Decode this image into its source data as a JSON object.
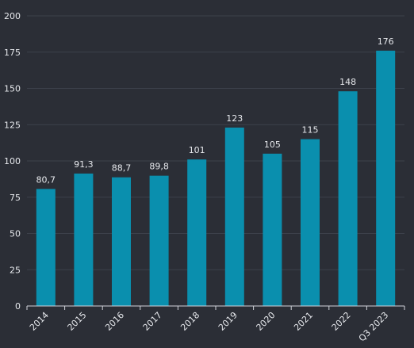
{
  "chart_data": {
    "type": "bar",
    "categories": [
      "2014",
      "2015",
      "2016",
      "2017",
      "2018",
      "2019",
      "2020",
      "2021",
      "2022",
      "Q3 2023"
    ],
    "values": [
      80.7,
      91.3,
      88.7,
      89.8,
      101,
      123,
      105,
      115,
      148,
      176
    ],
    "value_labels": [
      "80,7",
      "91,3",
      "88,7",
      "89,8",
      "101",
      "123",
      "105",
      "115",
      "148",
      "176"
    ],
    "y_ticks": [
      "0",
      "25",
      "50",
      "75",
      "100",
      "125",
      "150",
      "175",
      "200"
    ],
    "ylim": [
      0,
      200
    ],
    "title": "",
    "xlabel": "",
    "ylabel": "",
    "grid": true,
    "bar_color": "#0a8fae",
    "background_color": "#2b2e36"
  }
}
